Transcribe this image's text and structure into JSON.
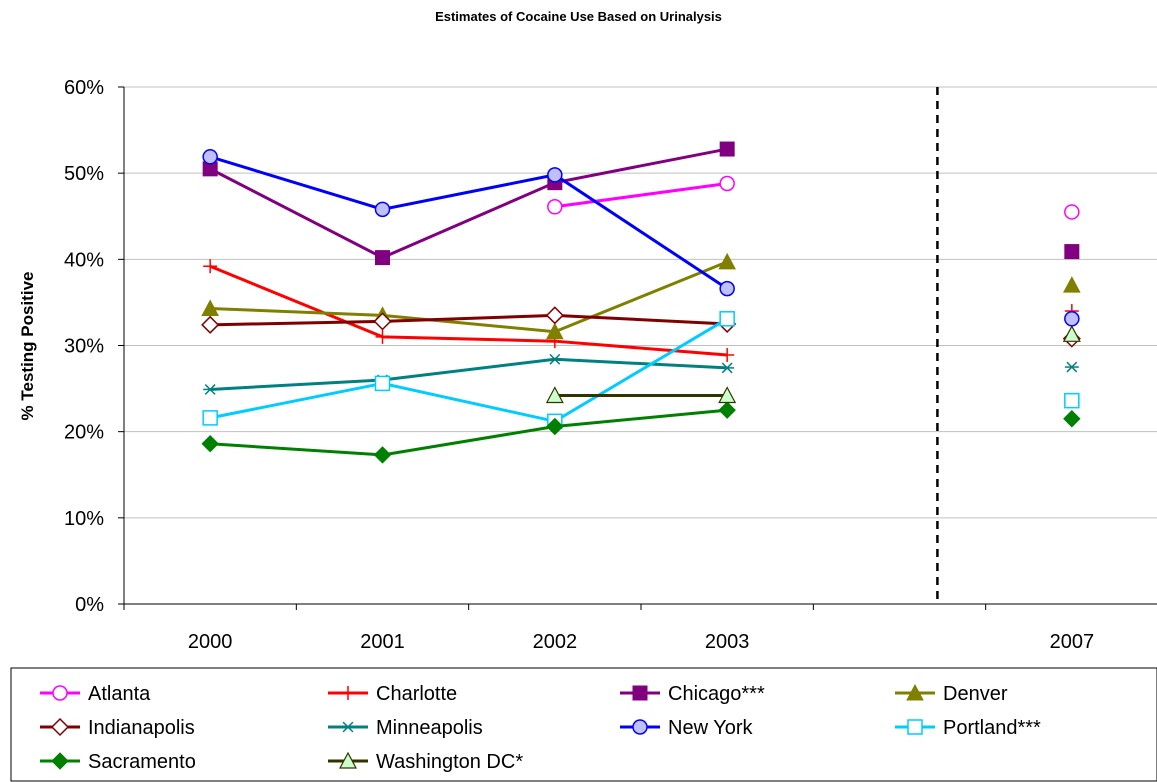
{
  "chart_data": {
    "type": "line",
    "title": "Estimates of Cocaine Use Based on Urinalysis",
    "ylabel": "% Testing Positive",
    "xlabel": "",
    "categories": [
      "2000",
      "2001",
      "2002",
      "2003",
      "",
      "2007"
    ],
    "y_ticks": [
      "0%",
      "10%",
      "20%",
      "30%",
      "40%",
      "50%",
      "60%"
    ],
    "ylim": [
      0,
      60
    ],
    "grid": "horizontal",
    "legend_position": "bottom",
    "divider_after_category": "2003",
    "series": [
      {
        "name": "Atlanta",
        "color": "#ff00ff",
        "marker": "circle-open",
        "values": [
          null,
          null,
          46.1,
          48.8,
          null,
          45.5
        ]
      },
      {
        "name": "Charlotte",
        "color": "#ff0000",
        "marker": "plus",
        "values": [
          39.2,
          31.0,
          30.5,
          28.9,
          null,
          34.0
        ]
      },
      {
        "name": "Chicago***",
        "color": "#800080",
        "marker": "square",
        "values": [
          50.5,
          40.2,
          48.9,
          52.8,
          null,
          40.9
        ]
      },
      {
        "name": "Denver",
        "color": "#808000",
        "marker": "triangle",
        "values": [
          34.3,
          33.5,
          31.6,
          39.7,
          null,
          37.0
        ]
      },
      {
        "name": "Indianapolis",
        "color": "#800000",
        "marker": "diamond-open",
        "values": [
          32.4,
          32.8,
          33.5,
          32.5,
          null,
          30.8
        ]
      },
      {
        "name": "Minneapolis",
        "color": "#008080",
        "marker": "star",
        "values": [
          24.9,
          26.0,
          28.4,
          27.4,
          null,
          27.5
        ]
      },
      {
        "name": "New York",
        "color": "#0000ff",
        "marker": "circle-lavender",
        "values": [
          51.9,
          45.8,
          49.8,
          36.6,
          null,
          33.1
        ]
      },
      {
        "name": "Portland***",
        "color": "#00ccff",
        "marker": "square-open",
        "values": [
          21.6,
          25.6,
          21.2,
          33.1,
          null,
          23.6
        ]
      },
      {
        "name": "Sacramento",
        "color": "#008000",
        "marker": "diamond",
        "values": [
          18.6,
          17.3,
          20.6,
          22.5,
          null,
          21.5
        ]
      },
      {
        "name": "Washington DC*",
        "color": "#333300",
        "marker": "triangle-open-green",
        "values": [
          null,
          null,
          24.2,
          24.2,
          null,
          31.3
        ]
      }
    ]
  }
}
